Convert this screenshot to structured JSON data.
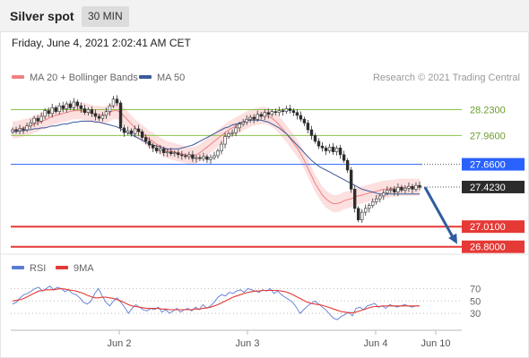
{
  "header": {
    "title": "Silver spot",
    "interval": "30 MIN"
  },
  "timestamp": "Friday, June 4, 2021 2:02:41 AM CET",
  "legend": {
    "ma20_label": "MA 20 + Bollinger Bands",
    "ma50_label": "MA 50",
    "copyright": "Research © 2021 Trading Central",
    "rsi_label": "RSI",
    "rsi_ma_label": "9MA"
  },
  "colors": {
    "ma20": "#f08080",
    "ma50": "#3a5a9a",
    "band_fill": "#fbd5d5",
    "candle_up": "#ffffff",
    "candle_down": "#2b2b2b",
    "resistance": "#8bc34a",
    "pivot": "#2962ff",
    "support": "#e53935",
    "current": "#2b2b2b",
    "arrow": "#2e5d9f",
    "rsi": "#5b7bd5",
    "rsi_ma": "#e53935"
  },
  "chart_data": [
    {
      "type": "candlestick",
      "title": "Silver spot",
      "interval": "30 MIN",
      "x_ticks": [
        "Jun 2",
        "Jun 3",
        "Jun 4",
        "Jun 10"
      ],
      "ylim": [
        26.76,
        28.44
      ],
      "levels": [
        {
          "value": 28.23,
          "label": "28.2300",
          "kind": "resistance"
        },
        {
          "value": 27.96,
          "label": "27.9600",
          "kind": "resistance"
        },
        {
          "value": 27.66,
          "label": "27.6600",
          "kind": "pivot"
        },
        {
          "value": 27.423,
          "label": "27.4230",
          "kind": "current"
        },
        {
          "value": 27.01,
          "label": "27.0100",
          "kind": "support"
        },
        {
          "value": 26.8,
          "label": "26.8000",
          "kind": "support"
        }
      ],
      "closes": [
        28.02,
        28.01,
        28.03,
        28.02,
        28.06,
        28.09,
        28.14,
        28.11,
        28.16,
        28.22,
        28.19,
        28.25,
        28.21,
        28.27,
        28.24,
        28.29,
        28.25,
        28.31,
        28.27,
        28.24,
        28.2,
        28.23,
        28.19,
        28.16,
        28.14,
        28.17,
        28.21,
        28.27,
        28.34,
        28.3,
        28.04,
        27.99,
        28.01,
        27.98,
        28.03,
        28.0,
        27.94,
        27.9,
        27.86,
        27.83,
        27.8,
        27.82,
        27.78,
        27.79,
        27.77,
        27.78,
        27.76,
        27.75,
        27.74,
        27.76,
        27.72,
        27.73,
        27.72,
        27.74,
        27.71,
        27.73,
        27.75,
        27.8,
        27.87,
        27.95,
        27.98,
        27.99,
        28.04,
        28.08,
        28.1,
        28.13,
        28.15,
        28.13,
        28.18,
        28.16,
        28.2,
        28.18,
        28.21,
        28.2,
        28.22,
        28.21,
        28.24,
        28.22,
        28.2,
        28.17,
        28.13,
        28.09,
        28.02,
        27.96,
        27.9,
        27.85,
        27.83,
        27.8,
        27.84,
        27.79,
        27.83,
        27.76,
        27.7,
        27.6,
        27.4,
        27.2,
        27.08,
        27.16,
        27.2,
        27.23,
        27.27,
        27.3,
        27.33,
        27.36,
        27.39,
        27.4,
        27.37,
        27.42,
        27.39,
        27.41,
        27.43,
        27.4,
        27.44,
        27.42
      ],
      "ma20": [
        28.02,
        28.02,
        28.03,
        28.04,
        28.05,
        28.06,
        28.08,
        28.09,
        28.11,
        28.12,
        28.14,
        28.16,
        28.17,
        28.18,
        28.19,
        28.2,
        28.21,
        28.22,
        28.22,
        28.22,
        28.21,
        28.2,
        28.19,
        28.18,
        28.18,
        28.17,
        28.18,
        28.2,
        28.22,
        28.22,
        28.2,
        28.16,
        28.12,
        28.08,
        28.04,
        28.01,
        27.98,
        27.95,
        27.92,
        27.9,
        27.87,
        27.85,
        27.83,
        27.81,
        27.8,
        27.79,
        27.78,
        27.77,
        27.76,
        27.75,
        27.75,
        27.76,
        27.78,
        27.81,
        27.84,
        27.87,
        27.9,
        27.93,
        27.96,
        27.99,
        28.02,
        28.04,
        28.06,
        28.08,
        28.1,
        28.12,
        28.14,
        28.15,
        28.16,
        28.17,
        28.17,
        28.16,
        28.14,
        28.11,
        28.07,
        28.03,
        27.98,
        27.93,
        27.88,
        27.83,
        27.77,
        27.7,
        27.62,
        27.54,
        27.46,
        27.4,
        27.34,
        27.3,
        27.27,
        27.25,
        27.25,
        27.26,
        27.28,
        27.29,
        27.3,
        27.32,
        27.33,
        27.34,
        27.35,
        27.36,
        27.37,
        27.38,
        27.39,
        27.4,
        27.4,
        27.41,
        27.41,
        27.42,
        27.42,
        27.42,
        27.42,
        27.42,
        27.42,
        27.42
      ],
      "ma50": [
        28.0,
        28.0,
        28.01,
        28.01,
        28.02,
        28.02,
        28.03,
        28.03,
        28.04,
        28.04,
        28.05,
        28.06,
        28.06,
        28.07,
        28.08,
        28.08,
        28.09,
        28.1,
        28.1,
        28.11,
        28.11,
        28.11,
        28.11,
        28.1,
        28.1,
        28.09,
        28.08,
        28.07,
        28.06,
        28.05,
        28.03,
        28.01,
        27.99,
        27.97,
        27.95,
        27.93,
        27.91,
        27.89,
        27.87,
        27.86,
        27.85,
        27.84,
        27.83,
        27.82,
        27.82,
        27.82,
        27.82,
        27.83,
        27.84,
        27.85,
        27.86,
        27.88,
        27.9,
        27.92,
        27.94,
        27.96,
        27.98,
        28.0,
        28.02,
        28.04,
        28.05,
        28.07,
        28.08,
        28.09,
        28.1,
        28.11,
        28.12,
        28.12,
        28.12,
        28.12,
        28.11,
        28.1,
        28.08,
        28.06,
        28.04,
        28.01,
        27.98,
        27.94,
        27.9,
        27.86,
        27.82,
        27.78,
        27.74,
        27.7,
        27.67,
        27.64,
        27.62,
        27.6,
        27.58,
        27.56,
        27.54,
        27.52,
        27.5,
        27.48,
        27.46,
        27.44,
        27.42,
        27.4,
        27.39,
        27.38,
        27.37,
        27.36,
        27.35,
        27.35,
        27.35,
        27.35,
        27.35,
        27.35,
        27.35,
        27.35,
        27.35,
        27.35,
        27.35,
        27.35
      ]
    },
    {
      "type": "line",
      "title": "RSI",
      "ylim": [
        10,
        85
      ],
      "ticks": [
        70,
        50,
        30
      ],
      "series": [
        {
          "name": "RSI",
          "values": [
            45,
            48,
            55,
            60,
            62,
            66,
            70,
            72,
            66,
            70,
            74,
            68,
            72,
            70,
            65,
            68,
            62,
            60,
            55,
            48,
            45,
            50,
            62,
            70,
            58,
            48,
            42,
            50,
            55,
            48,
            40,
            30,
            38,
            44,
            40,
            36,
            34,
            38,
            36,
            40,
            32,
            36,
            30,
            34,
            38,
            32,
            36,
            38,
            34,
            40,
            36,
            44,
            38,
            42,
            48,
            56,
            60,
            58,
            64,
            62,
            66,
            68,
            64,
            70,
            68,
            66,
            64,
            68,
            66,
            70,
            62,
            66,
            60,
            56,
            52,
            48,
            40,
            30,
            36,
            42,
            46,
            50,
            45,
            40,
            35,
            28,
            22,
            20,
            25,
            28,
            32,
            26,
            38,
            40,
            36,
            42,
            44,
            46,
            40,
            42,
            38,
            44,
            42,
            40,
            42,
            44,
            42,
            40,
            42,
            42
          ]
        },
        {
          "name": "9MA",
          "values": [
            50,
            51,
            52,
            54,
            57,
            60,
            63,
            66,
            67,
            68,
            68,
            68,
            69,
            70,
            69,
            68,
            67,
            66,
            64,
            62,
            59,
            57,
            55,
            55,
            56,
            56,
            55,
            54,
            52,
            50,
            47,
            44,
            42,
            41,
            40,
            39,
            38,
            38,
            38,
            38,
            37,
            37,
            36,
            36,
            36,
            36,
            36,
            36,
            36,
            37,
            37,
            38,
            39,
            40,
            42,
            44,
            47,
            50,
            53,
            56,
            58,
            60,
            62,
            64,
            65,
            66,
            66,
            67,
            67,
            67,
            67,
            67,
            66,
            65,
            63,
            60,
            57,
            54,
            51,
            48,
            46,
            45,
            44,
            43,
            41,
            39,
            37,
            35,
            33,
            32,
            31,
            31,
            32,
            34,
            36,
            38,
            40,
            41,
            41,
            42,
            42,
            42,
            42,
            42,
            42,
            42,
            42,
            42,
            42,
            42
          ]
        }
      ]
    }
  ]
}
